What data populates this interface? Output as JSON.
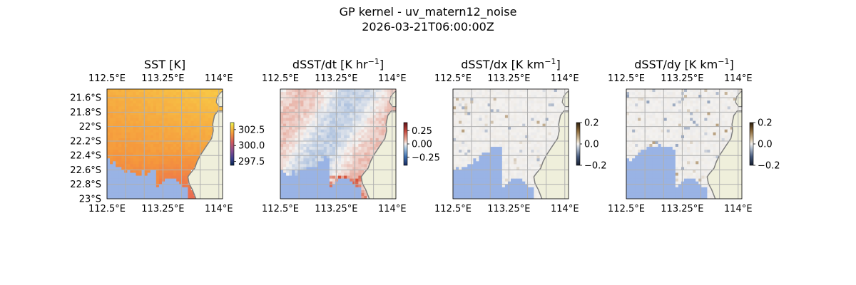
{
  "figure": {
    "title": "GP kernel - uv_matern12_noise",
    "subtitle": "2026-03-21T06:00:00Z"
  },
  "map_extent": {
    "lon": [
      112.5,
      114.05
    ],
    "lat": [
      -23.0,
      -21.48
    ]
  },
  "colors": {
    "ocean_mask": "#99b3e5",
    "land": "#efefdb",
    "coastline": "#808080",
    "gridline": "#b0b0b0"
  },
  "chart_data": [
    {
      "type": "heatmap",
      "title": "SST [K]",
      "colormap": "thermal-orange",
      "colorbar": {
        "ticks": [
          302.5,
          300.0,
          297.5
        ],
        "tick_labels": [
          "302.5",
          "300.0",
          "297.5"
        ],
        "range": [
          296.9,
          303.6
        ]
      },
      "lat_tick_labels": [
        "21.6°S",
        "21.8°S",
        "22°S",
        "22.2°S",
        "22.4°S",
        "22.6°S",
        "22.8°S",
        "23°S"
      ],
      "lat_ticks": [
        -21.6,
        -21.8,
        -22.0,
        -22.2,
        -22.4,
        -22.6,
        -22.8,
        -23.0
      ],
      "lon_ticks": [
        112.5,
        113.25,
        114.0
      ],
      "lon_tick_labels": [
        "112.5°E",
        "113.25°E",
        "114°E"
      ],
      "grid": true
    },
    {
      "type": "heatmap",
      "title_main": "dSST/dt [K hr",
      "title_exp": "−1",
      "title_end": "]",
      "colormap": "diverging-blue-red",
      "colorbar": {
        "ticks": [
          0.25,
          0.0,
          -0.25
        ],
        "tick_labels": [
          "0.25",
          "0.00",
          "−0.25"
        ],
        "range": [
          -0.4,
          0.4
        ]
      },
      "lon_ticks": [
        112.5,
        113.25,
        114.0
      ],
      "lon_tick_labels": [
        "112.5°E",
        "113.25°E",
        "114°E"
      ],
      "grid": true
    },
    {
      "type": "heatmap",
      "title_main": "dSST/dx [K km",
      "title_exp": "−1",
      "title_end": "]",
      "colormap": "diverging-blue-brown",
      "colorbar": {
        "ticks": [
          0.2,
          0.0,
          -0.2
        ],
        "tick_labels": [
          "0.2",
          "0.0",
          "−0.2"
        ],
        "range": [
          -0.2,
          0.2
        ]
      },
      "lon_ticks": [
        112.5,
        113.25,
        114.0
      ],
      "lon_tick_labels": [
        "112.5°E",
        "113.25°E",
        "114°E"
      ],
      "grid": true
    },
    {
      "type": "heatmap",
      "title_main": "dSST/dy [K km",
      "title_exp": "−1",
      "title_end": "]",
      "colormap": "diverging-blue-brown",
      "colorbar": {
        "ticks": [
          0.2,
          0.0,
          -0.2
        ],
        "tick_labels": [
          "0.2",
          "0.0",
          "−0.2"
        ],
        "range": [
          -0.2,
          0.2
        ]
      },
      "lon_ticks": [
        112.5,
        113.25,
        114.0
      ],
      "lon_tick_labels": [
        "112.5°E",
        "113.25°E",
        "114°E"
      ],
      "grid": true
    }
  ]
}
